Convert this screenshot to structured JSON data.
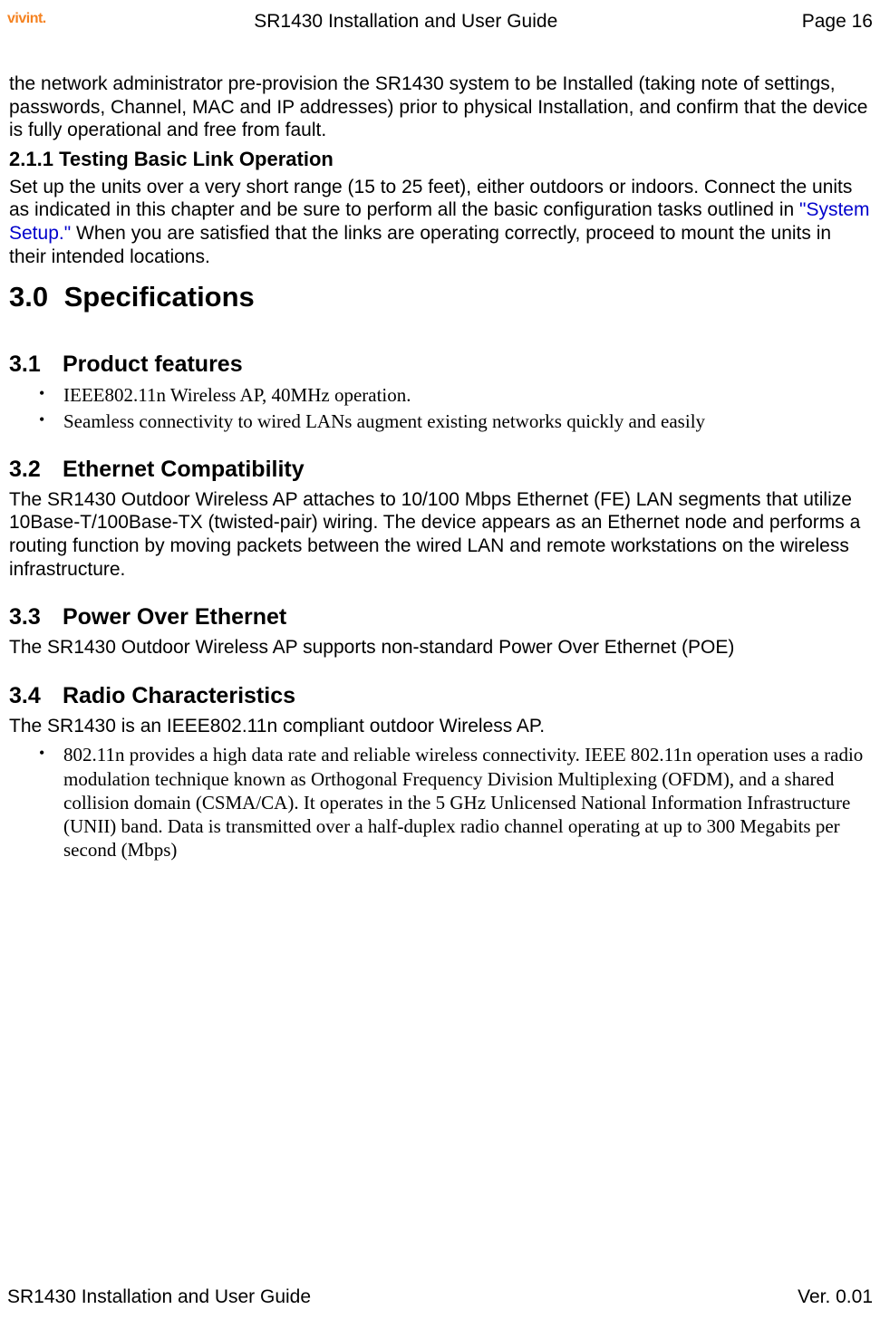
{
  "header": {
    "logo_text": "vivint.",
    "title": "SR1430 Installation and User Guide",
    "page_label": "Page 16"
  },
  "intro_paragraph": "the network administrator pre-provision the SR1430 system to be Installed (taking note of settings, passwords, Channel, MAC and IP addresses) prior to physical Installation, and confirm that the device is fully operational and free from fault.",
  "section_211": {
    "number": "2.1.1",
    "title": "Testing Basic Link Operation",
    "text_before_link": "Set up the units over a very short range (15 to 25 feet), either outdoors or indoors. Connect the units as indicated in this chapter and be sure to perform all the basic configuration tasks outlined in ",
    "link_text": "\"System Setup.\"",
    "text_after_link": " When you are satisfied that the links are operating correctly, proceed to mount the units in their intended locations."
  },
  "section_30": {
    "number": "3.0",
    "title": "Specifications"
  },
  "section_31": {
    "number": "3.1",
    "title": "Product features",
    "bullets": [
      "IEEE802.11n Wireless AP, 40MHz operation.",
      "Seamless connectivity to wired LANs augment existing networks quickly and easily"
    ]
  },
  "section_32": {
    "number": "3.2",
    "title": "Ethernet Compatibility",
    "text": "The SR1430 Outdoor Wireless AP attaches to 10/100 Mbps Ethernet (FE) LAN segments that utilize 10Base-T/100Base-TX (twisted-pair) wiring. The device appears as an Ethernet node and performs a routing function by moving packets between the wired LAN and remote workstations on the wireless infrastructure."
  },
  "section_33": {
    "number": "3.3",
    "title": "Power Over Ethernet",
    "text": "The SR1430 Outdoor Wireless AP supports non-standard Power Over Ethernet (POE)"
  },
  "section_34": {
    "number": "3.4",
    "title": "Radio Characteristics",
    "text": "The SR1430 is an IEEE802.11n compliant outdoor Wireless AP.",
    "bullets": [
      "802.11n provides a high data rate and reliable wireless connectivity. IEEE 802.11n operation uses a radio modulation technique known as Orthogonal Frequency Division Multiplexing (OFDM), and a shared collision domain (CSMA/CA). It operates in the 5 GHz Unlicensed National Information Infrastructure (UNII) band. Data is transmitted over a half-duplex radio channel operating at up to 300 Megabits per second (Mbps)"
    ]
  },
  "footer": {
    "left": "SR1430 Installation and User Guide",
    "right": "Ver. 0.01"
  },
  "colors": {
    "logo": "#f58220",
    "link": "#0000cc",
    "text": "#000000",
    "background": "#ffffff"
  }
}
